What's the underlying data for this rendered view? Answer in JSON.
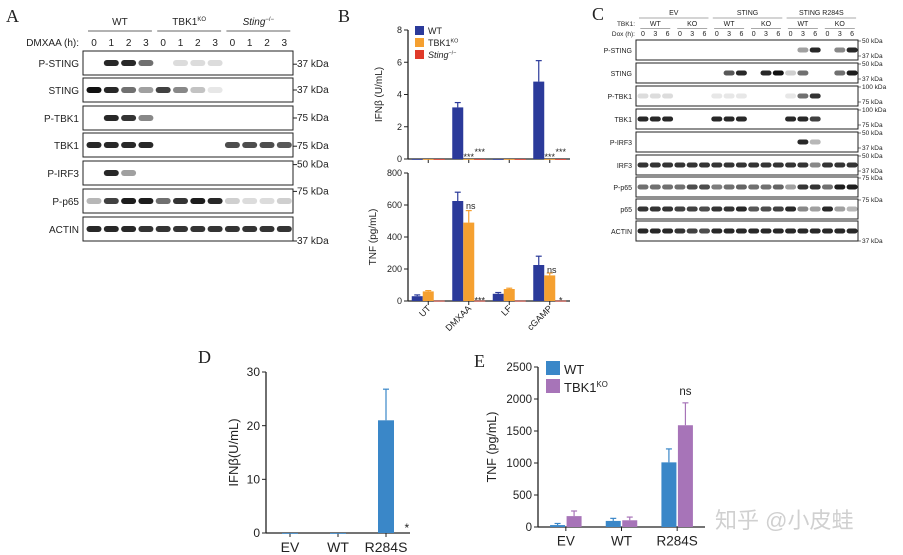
{
  "panels": {
    "A": "A",
    "B": "B",
    "C": "C",
    "D": "D",
    "E": "E"
  },
  "blot_A": {
    "groups": [
      {
        "label": "WT",
        "sup": ""
      },
      {
        "label": "TBK1",
        "sup": "KO"
      },
      {
        "label": "Sting",
        "sup": "−/−"
      }
    ],
    "timepoint_label": "DMXAA (h):",
    "timepoints": [
      "0",
      "1",
      "2",
      "3"
    ],
    "rows": [
      {
        "label": "P-STING",
        "markers": [
          "37 kDa"
        ],
        "bands": [
          0,
          0.9,
          0.9,
          0.6,
          0,
          0.15,
          0.15,
          0.15,
          0,
          0,
          0,
          0
        ]
      },
      {
        "label": "STING",
        "markers": [
          "37 kDa"
        ],
        "bands": [
          1,
          0.9,
          0.6,
          0.4,
          0.8,
          0.5,
          0.25,
          0.1,
          0,
          0,
          0,
          0
        ]
      },
      {
        "label": "P-TBK1",
        "markers": [
          "75 kDa"
        ],
        "bands": [
          0,
          0.9,
          0.85,
          0.5,
          0,
          0,
          0,
          0,
          0,
          0,
          0,
          0
        ]
      },
      {
        "label": "TBK1",
        "markers": [
          "75 kDa"
        ],
        "bands": [
          0.9,
          0.9,
          0.9,
          0.9,
          0,
          0,
          0,
          0,
          0.75,
          0.75,
          0.75,
          0.7
        ]
      },
      {
        "label": "P-IRF3",
        "markers": [
          "50 kDa"
        ],
        "bands": [
          0,
          0.9,
          0.4,
          0,
          0,
          0,
          0,
          0,
          0,
          0,
          0,
          0
        ]
      },
      {
        "label": "P-p65",
        "markers": [
          "75 kDa"
        ],
        "bands": [
          0.3,
          0.8,
          0.95,
          0.95,
          0.6,
          0.85,
          0.95,
          0.9,
          0.2,
          0.15,
          0.15,
          0.2
        ]
      },
      {
        "label": "ACTIN",
        "markers": [
          "37 kDa"
        ],
        "bands": [
          0.9,
          0.9,
          0.9,
          0.85,
          0.85,
          0.85,
          0.85,
          0.85,
          0.85,
          0.85,
          0.85,
          0.85
        ]
      }
    ]
  },
  "blot_C": {
    "groups": [
      "EV",
      "STING",
      "STING R284S"
    ],
    "genotype_label": "TBK1:",
    "genotypes": [
      "WT",
      "KO"
    ],
    "timepoint_label": "Dox (h):",
    "timepoints": [
      "0",
      "3",
      "6"
    ],
    "rows": [
      {
        "label": "P-STING",
        "markers": [
          "50 kDa",
          "37 kDa"
        ],
        "bands": [
          0,
          0,
          0,
          0,
          0,
          0,
          0,
          0,
          0,
          0,
          0,
          0,
          0,
          0.4,
          0.9,
          0,
          0.5,
          0.9
        ]
      },
      {
        "label": "STING",
        "markers": [
          "50 kDa",
          "37 kDa"
        ],
        "bands": [
          0,
          0,
          0,
          0,
          0,
          0,
          0,
          0.7,
          0.9,
          0,
          0.9,
          1,
          0.2,
          0.6,
          0,
          0,
          0.6,
          0.95
        ]
      },
      {
        "label": "P-TBK1",
        "markers": [
          "100 kDa",
          "75 kDa"
        ],
        "bands": [
          0.15,
          0.15,
          0.15,
          0,
          0,
          0,
          0.1,
          0.1,
          0.1,
          0,
          0,
          0,
          0.1,
          0.6,
          0.85,
          0,
          0,
          0
        ]
      },
      {
        "label": "TBK1",
        "markers": [
          "100 kDa",
          "75 kDa"
        ],
        "bands": [
          0.9,
          0.9,
          0.9,
          0,
          0,
          0,
          0.9,
          0.9,
          0.9,
          0,
          0,
          0,
          0.9,
          0.9,
          0.8,
          0,
          0,
          0
        ]
      },
      {
        "label": "P-IRF3",
        "markers": [
          "50 kDa",
          "37 kDa"
        ],
        "bands": [
          0,
          0,
          0,
          0,
          0,
          0,
          0,
          0,
          0,
          0,
          0,
          0,
          0,
          0.9,
          0.3,
          0,
          0,
          0
        ]
      },
      {
        "label": "IRF3",
        "markers": [
          "50 kDa",
          "37 kDa"
        ],
        "bands": [
          0.85,
          0.85,
          0.85,
          0.85,
          0.85,
          0.85,
          0.85,
          0.85,
          0.85,
          0.85,
          0.85,
          0.85,
          0.85,
          0.85,
          0.5,
          0.85,
          0.85,
          0.85
        ]
      },
      {
        "label": "P-p65",
        "markers": [
          "75 kDa"
        ],
        "bands": [
          0.6,
          0.6,
          0.6,
          0.6,
          0.75,
          0.75,
          0.55,
          0.6,
          0.65,
          0.6,
          0.6,
          0.65,
          0.4,
          0.85,
          0.85,
          0.6,
          0.95,
          0.95
        ]
      },
      {
        "label": "p65",
        "markers": [
          "75 kDa"
        ],
        "bands": [
          0.85,
          0.85,
          0.85,
          0.8,
          0.8,
          0.75,
          0.85,
          0.85,
          0.9,
          0.7,
          0.75,
          0.8,
          0.9,
          0.5,
          0.4,
          0.9,
          0.4,
          0.3
        ]
      },
      {
        "label": "ACTIN",
        "markers": [
          "37 kDa"
        ],
        "bands": [
          0.9,
          0.9,
          0.9,
          0.85,
          0.8,
          0.75,
          0.9,
          0.9,
          0.9,
          0.9,
          0.9,
          0.9,
          0.9,
          0.9,
          0.9,
          0.9,
          0.9,
          0.9
        ]
      }
    ]
  },
  "chart_data": [
    {
      "id": "B-top",
      "type": "bar",
      "title": "",
      "xlabel": "",
      "ylabel": "IFNβ (U/mL)",
      "ylim": [
        0,
        8
      ],
      "yticks": [
        0,
        2,
        4,
        6,
        8
      ],
      "categories": [
        "UT",
        "DMXAA",
        "LF",
        "cGAMP"
      ],
      "show_xlabels": false,
      "legend": {
        "placement": "top-left",
        "entries": [
          {
            "label": "WT",
            "sup": ""
          },
          {
            "label": "TBK1",
            "sup": "KO"
          },
          {
            "label": "Sting",
            "sup": "−/−",
            "italic": true
          }
        ]
      },
      "series": [
        {
          "name": "WT",
          "color": "#2b3a9a",
          "values": [
            0,
            3.2,
            0,
            4.8
          ],
          "errors": [
            0,
            0.3,
            0,
            1.3
          ]
        },
        {
          "name": "TBK1KO",
          "color": "#f5a030",
          "values": [
            0,
            0,
            0,
            0
          ],
          "errors": [
            0,
            0,
            0,
            0
          ]
        },
        {
          "name": "Sting-/-",
          "color": "#e03a2a",
          "values": [
            0,
            0,
            0,
            0
          ],
          "errors": [
            0,
            0,
            0,
            0
          ]
        }
      ],
      "annotations": [
        {
          "text": "***",
          "category": 1,
          "series": 1
        },
        {
          "text": "***",
          "category": 1,
          "series": 2
        },
        {
          "text": "***",
          "category": 3,
          "series": 1
        },
        {
          "text": "***",
          "category": 3,
          "series": 2
        }
      ]
    },
    {
      "id": "B-bottom",
      "type": "bar",
      "title": "",
      "xlabel": "",
      "ylabel": "TNF (pg/mL)",
      "ylim": [
        0,
        800
      ],
      "yticks": [
        0,
        200,
        400,
        600,
        800
      ],
      "categories": [
        "UT",
        "DMXAA",
        "LF",
        "cGAMP"
      ],
      "show_xlabels": true,
      "series": [
        {
          "name": "WT",
          "color": "#2b3a9a",
          "values": [
            30,
            625,
            45,
            225
          ],
          "errors": [
            8,
            55,
            8,
            55
          ]
        },
        {
          "name": "TBK1KO",
          "color": "#f5a030",
          "values": [
            60,
            490,
            75,
            160
          ],
          "errors": [
            5,
            75,
            5,
            15
          ]
        },
        {
          "name": "Sting-/-",
          "color": "#e03a2a",
          "values": [
            2,
            2,
            2,
            2
          ],
          "errors": [
            0,
            0,
            0,
            0
          ]
        }
      ],
      "annotations": [
        {
          "text": "ns",
          "category": 1,
          "series": 1
        },
        {
          "text": "***",
          "category": 1,
          "series": 2
        },
        {
          "text": "ns",
          "category": 3,
          "series": 1
        },
        {
          "text": "*",
          "category": 3,
          "series": 2
        }
      ]
    },
    {
      "id": "D",
      "type": "bar",
      "title": "",
      "xlabel": "",
      "ylabel": "IFNβ(U/mL)",
      "ylim": [
        0,
        30
      ],
      "yticks": [
        0,
        10,
        20,
        30
      ],
      "categories": [
        "EV",
        "WT",
        "R284S"
      ],
      "show_xlabels": true,
      "series": [
        {
          "name": "",
          "color": "#3a87c8",
          "values": [
            0,
            0,
            21
          ],
          "errors": [
            0,
            0,
            5.8
          ]
        }
      ],
      "annotations": [
        {
          "text": "*",
          "category": 2,
          "series": 0,
          "side": "right"
        }
      ]
    },
    {
      "id": "E",
      "type": "bar",
      "title": "",
      "xlabel": "",
      "ylabel": "TNF (pg/mL)",
      "ylim": [
        0,
        2500
      ],
      "yticks": [
        0,
        500,
        1000,
        1500,
        2000,
        2500
      ],
      "categories": [
        "EV",
        "WT",
        "R284S"
      ],
      "show_xlabels": true,
      "legend": {
        "placement": "top-left",
        "entries": [
          {
            "label": "WT",
            "sup": ""
          },
          {
            "label": "TBK1",
            "sup": "KO"
          }
        ]
      },
      "series": [
        {
          "name": "WT",
          "color": "#3a87c8",
          "values": [
            30,
            95,
            1010
          ],
          "errors": [
            25,
            40,
            210
          ]
        },
        {
          "name": "TBK1KO",
          "color": "#a774b8",
          "values": [
            170,
            105,
            1590
          ],
          "errors": [
            80,
            50,
            350
          ]
        }
      ],
      "annotations": [
        {
          "text": "ns",
          "category": 2,
          "series": -1
        }
      ]
    }
  ],
  "watermark": "知乎 @小皮蛙"
}
